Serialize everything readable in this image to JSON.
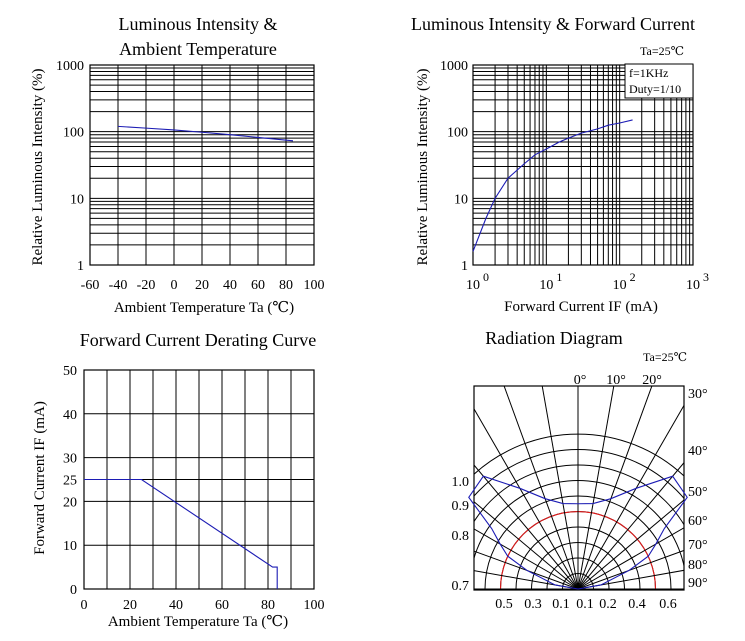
{
  "colors": {
    "curve": "#1c1cb4",
    "red_ring": "#e01a1a",
    "grid": "#000000"
  },
  "chart_data": [
    {
      "id": "temp",
      "type": "line",
      "title": [
        "Luminous Intensity &",
        "Ambient Temperature"
      ],
      "xlabel": "Ambient Temperature Ta (℃)",
      "ylabel": "Relative Luminous Intensity (%)",
      "xscale": "linear",
      "yscale": "log",
      "xlim": [
        -60,
        100
      ],
      "ylim": [
        1,
        1000
      ],
      "xticks": [
        -60,
        -40,
        -20,
        0,
        20,
        40,
        60,
        80,
        100
      ],
      "xticklabels": [
        "-60",
        "-40",
        "-20",
        "0",
        "20",
        "40",
        "60",
        "80",
        "100"
      ],
      "yticks": [
        1,
        10,
        100,
        1000
      ],
      "yticklabels": [
        "1",
        "10",
        "100",
        "1000"
      ],
      "series": [
        {
          "name": "intensity",
          "x": [
            -40,
            -20,
            0,
            20,
            40,
            60,
            85
          ],
          "y": [
            120,
            113,
            106,
            98,
            90,
            82,
            73
          ]
        }
      ]
    },
    {
      "id": "current",
      "type": "line",
      "title": [
        "Luminous Intensity & Forward Current"
      ],
      "xlabel": "Forward Current IF (mA)",
      "ylabel": "Relative Luminous Intensity (%)",
      "xscale": "log",
      "yscale": "log",
      "xlim": [
        1,
        1000
      ],
      "ylim": [
        1,
        1000
      ],
      "xticks": [
        1,
        10,
        100,
        1000
      ],
      "xticklabels": [
        "10",
        "10",
        "10",
        "10"
      ],
      "xtickexp": [
        "0",
        "1",
        "2",
        "3"
      ],
      "yticks": [
        1,
        10,
        100,
        1000
      ],
      "yticklabels": [
        "1",
        "10",
        "100",
        "1000"
      ],
      "annotations": {
        "condition": "Ta=25℃",
        "box": [
          "f=1KHz",
          "Duty=1/10"
        ]
      },
      "series": [
        {
          "name": "intensity",
          "x": [
            1,
            1.5,
            2,
            3,
            5,
            7,
            10,
            15,
            20,
            30,
            50,
            70,
            100,
            150
          ],
          "y": [
            1.6,
            5,
            10,
            20,
            33,
            45,
            55,
            70,
            80,
            95,
            110,
            125,
            135,
            150
          ]
        }
      ]
    },
    {
      "id": "derating",
      "type": "line",
      "title": [
        "Forward Current Derating Curve"
      ],
      "xlabel": "Ambient Temperature Ta (℃)",
      "ylabel": "Forward Current IF (mA)",
      "xscale": "linear",
      "yscale": "linear",
      "xlim": [
        0,
        100
      ],
      "ylim": [
        0,
        50
      ],
      "xticks": [
        0,
        20,
        40,
        60,
        80,
        100
      ],
      "xticklabels": [
        "0",
        "20",
        "40",
        "60",
        "80",
        "100"
      ],
      "yticks": [
        0,
        10,
        20,
        25,
        30,
        40,
        50
      ],
      "yticklabels": [
        "0",
        "10",
        "20",
        "25",
        "30",
        "40",
        "50"
      ],
      "series": [
        {
          "name": "max_if",
          "x": [
            0,
            25,
            82,
            82,
            84,
            84
          ],
          "y": [
            25,
            25,
            5,
            5,
            5,
            0
          ]
        }
      ]
    },
    {
      "id": "radiation",
      "type": "polar",
      "title": [
        "Radiation Diagram"
      ],
      "condition": "Ta=25℃",
      "angle_labels_top": [
        "0°",
        "10°",
        "20°"
      ],
      "angle_labels_right": [
        "30°",
        "40°",
        "50°",
        "60°",
        "70°",
        "80°",
        "90°"
      ],
      "radius_labels_left": [
        "1.0",
        "0.9",
        "0.8",
        "0.7"
      ],
      "radius_labels_bottom": [
        "0.5",
        "0.3",
        "0.1",
        "0.1",
        "0.2",
        "0.4",
        "0.6"
      ],
      "series": [
        {
          "name": "relative_intensity",
          "angle": [
            0,
            10,
            20,
            30,
            40,
            50,
            55,
            60,
            65,
            70,
            80,
            90
          ],
          "value": [
            0.55,
            0.56,
            0.62,
            0.75,
            0.95,
            0.92,
            0.68,
            0.58,
            0.5,
            0.35,
            0.15,
            0.0
          ]
        }
      ]
    }
  ]
}
